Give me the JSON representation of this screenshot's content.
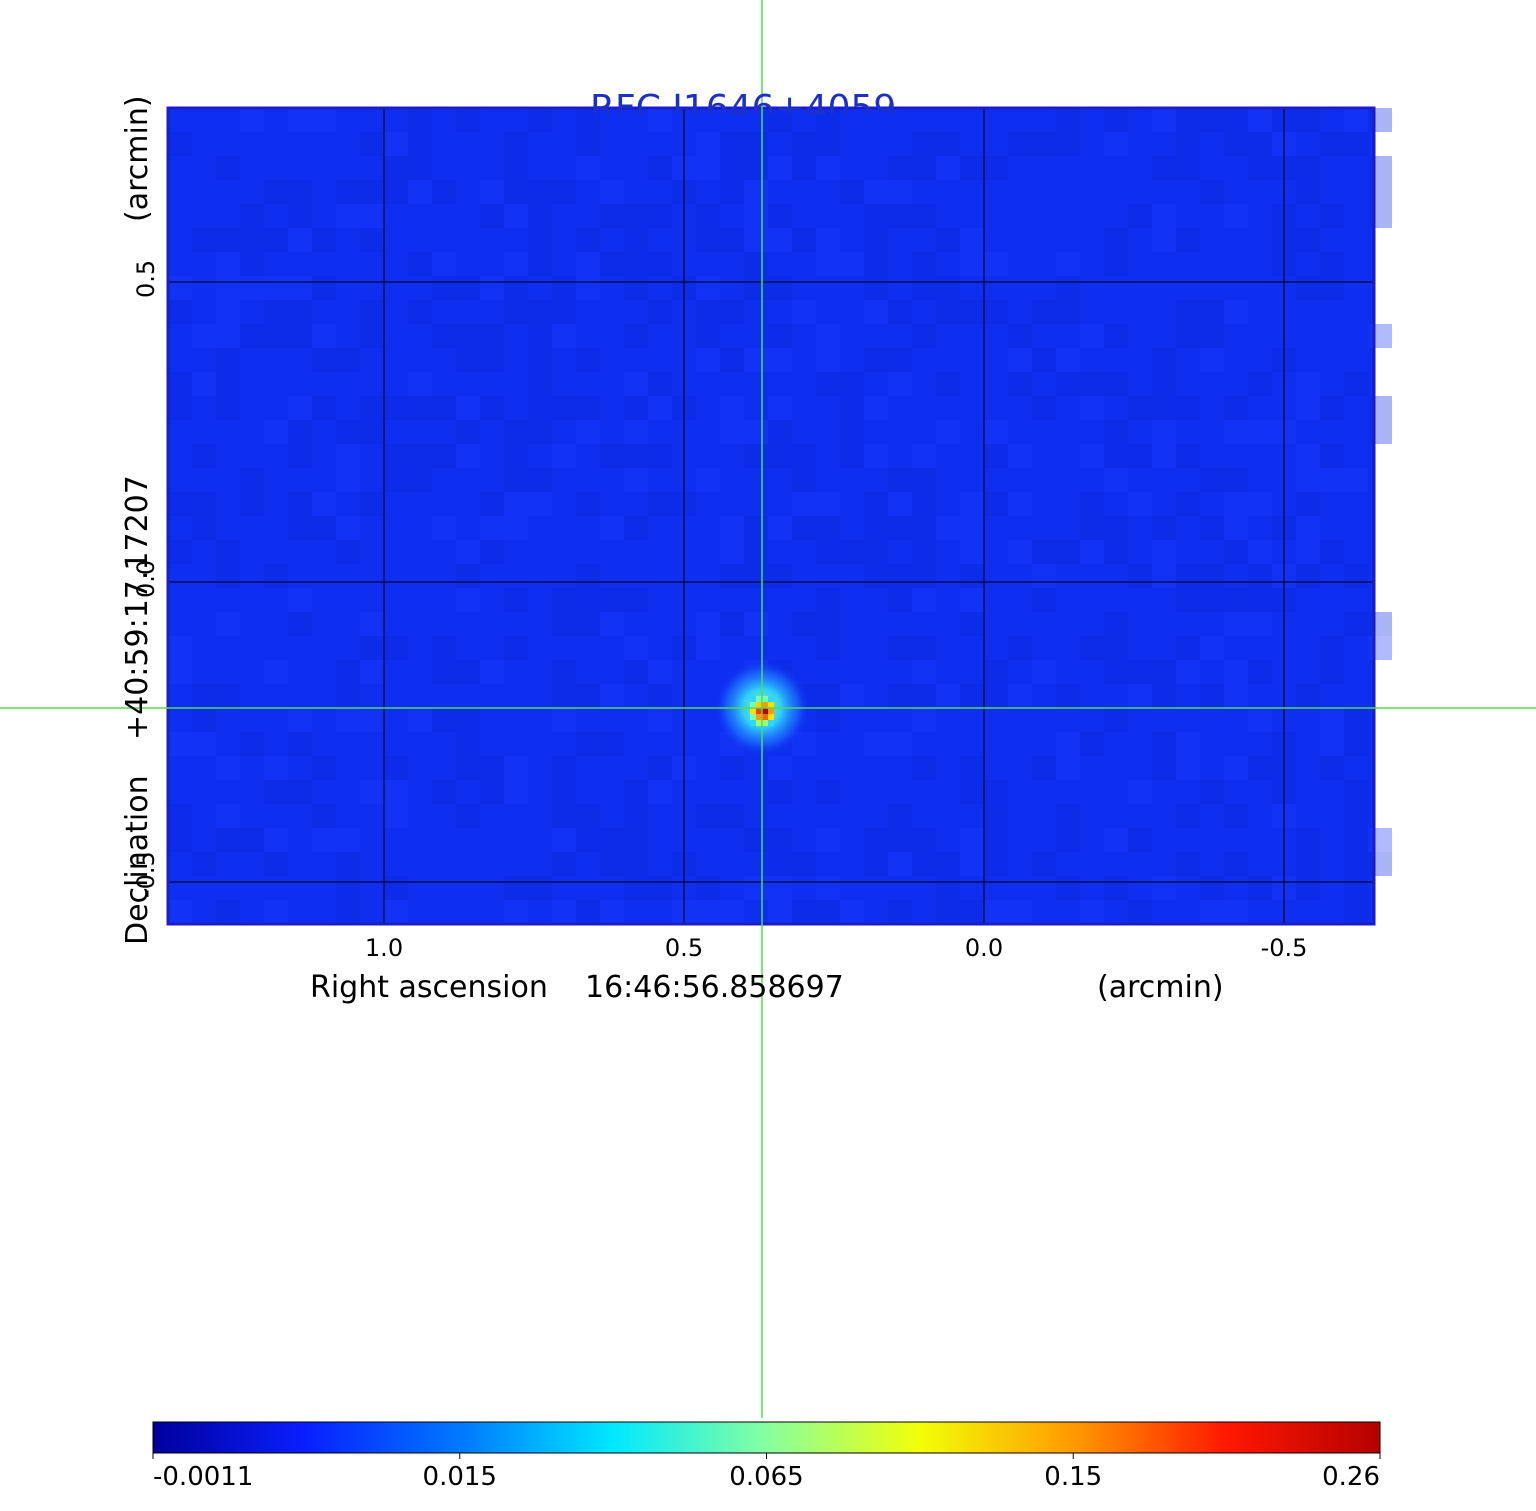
{
  "chart_data": {
    "type": "heatmap",
    "title": "RFC J1646+4059",
    "xlabel": {
      "prefix": "Right ascension",
      "center": "16:46:56.858697",
      "unit": "(arcmin)"
    },
    "ylabel": {
      "prefix": "Declination",
      "center": "+40:59:17.17207",
      "unit": "(arcmin)"
    },
    "x_ticks": [
      "1.0",
      "0.5",
      "0.0",
      "-0.5"
    ],
    "x_tick_values": [
      1.0,
      0.5,
      0.0,
      -0.5
    ],
    "y_ticks": [
      "0.5",
      "0.0",
      "-0.5"
    ],
    "y_tick_values": [
      0.5,
      0.0,
      -0.5
    ],
    "xlim": [
      1.36,
      -0.65
    ],
    "ylim": [
      -0.57,
      0.79
    ],
    "grid": true,
    "source_peak": {
      "x": 0.37,
      "y": -0.21,
      "value": 0.26
    },
    "crosshair": {
      "x": 0.37,
      "y": -0.21
    },
    "colorbar": {
      "placement": "bottom",
      "ticks": [
        "-0.0011",
        "0.015",
        "0.065",
        "0.15",
        "0.26"
      ],
      "values": [
        -0.0011,
        0.015,
        0.065,
        0.15,
        0.26
      ],
      "colormap": [
        "#00009a",
        "#0a1fff",
        "#0078ff",
        "#00e8ff",
        "#86ffa0",
        "#f2ff08",
        "#ff9a00",
        "#ff1800",
        "#b50000"
      ]
    },
    "colors": {
      "background_field": "#0e2ef0",
      "frame": "#1c1cc8",
      "grid": "#000000",
      "crosshair": "#4ddf4d",
      "title": "#1c2fc8"
    }
  }
}
